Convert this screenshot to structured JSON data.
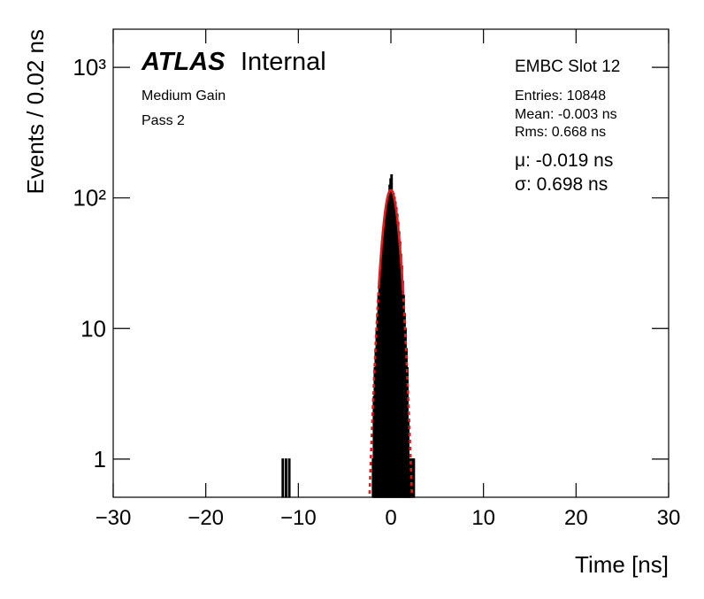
{
  "chart_data": {
    "type": "histogram",
    "log_y": true,
    "color": "#000000",
    "xlabel": "Time [ns]",
    "ylabel": "Events / 0.02 ns",
    "annotations": {
      "atlas": "ATLAS",
      "status": "Internal",
      "gain": "Medium Gain",
      "pass": "Pass 2",
      "slot": "EMBC Slot 12",
      "entries": "Entries: 10848",
      "mean": "Mean: -0.003 ns",
      "rms": "Rms: 0.668 ns",
      "fit_mu": "μ: -0.019 ns",
      "fit_sigma": "σ: 0.698 ns"
    },
    "bins": [
      -11.75,
      -11.7,
      -11.4,
      -11.35,
      -11.05,
      -11.0,
      -2.0,
      -1.9,
      -1.8,
      -1.7,
      -1.6,
      -1.5,
      -1.4,
      -1.3,
      -1.2,
      -1.1,
      -1.0,
      -0.9,
      -0.8,
      -0.7,
      -0.6,
      -0.5,
      -0.4,
      -0.3,
      -0.2,
      -0.1,
      0.0,
      0.1,
      0.2,
      0.3,
      0.4,
      0.5,
      0.6,
      0.7,
      0.8,
      0.9,
      1.0,
      1.1,
      1.2,
      1.3,
      1.4,
      1.5,
      1.6,
      1.7,
      1.8,
      1.9,
      2.0,
      2.1,
      2.2,
      2.3,
      2.4,
      2.5
    ],
    "values": [
      1,
      0,
      1,
      0,
      1,
      0,
      1,
      3,
      5,
      7,
      10,
      13,
      18,
      23,
      30,
      37,
      46,
      55,
      65,
      75,
      84,
      93,
      101,
      108,
      125,
      140,
      150,
      112,
      108,
      101,
      93,
      84,
      75,
      65,
      55,
      46,
      37,
      30,
      23,
      18,
      13,
      10,
      7,
      5,
      2,
      1,
      1,
      1,
      0,
      1,
      1
    ],
    "fit": {
      "color": "#e31a1c",
      "amplitude": 115,
      "mean": -0.019,
      "sigma": 0.698,
      "range": [
        -2.4,
        2.4
      ],
      "solid_range": [
        -1.3,
        1.3
      ]
    },
    "xlim": [
      -30,
      30
    ],
    "xticks": [
      {
        "value": -30,
        "label": "−30"
      },
      {
        "value": -20,
        "label": "−20"
      },
      {
        "value": -10,
        "label": "−10"
      },
      0,
      10,
      20,
      30
    ],
    "ylim": [
      0.51,
      1960
    ],
    "yticks": [
      1,
      10,
      {
        "value": 100,
        "label": "10²"
      },
      {
        "value": 1000,
        "label": "10³"
      }
    ]
  }
}
